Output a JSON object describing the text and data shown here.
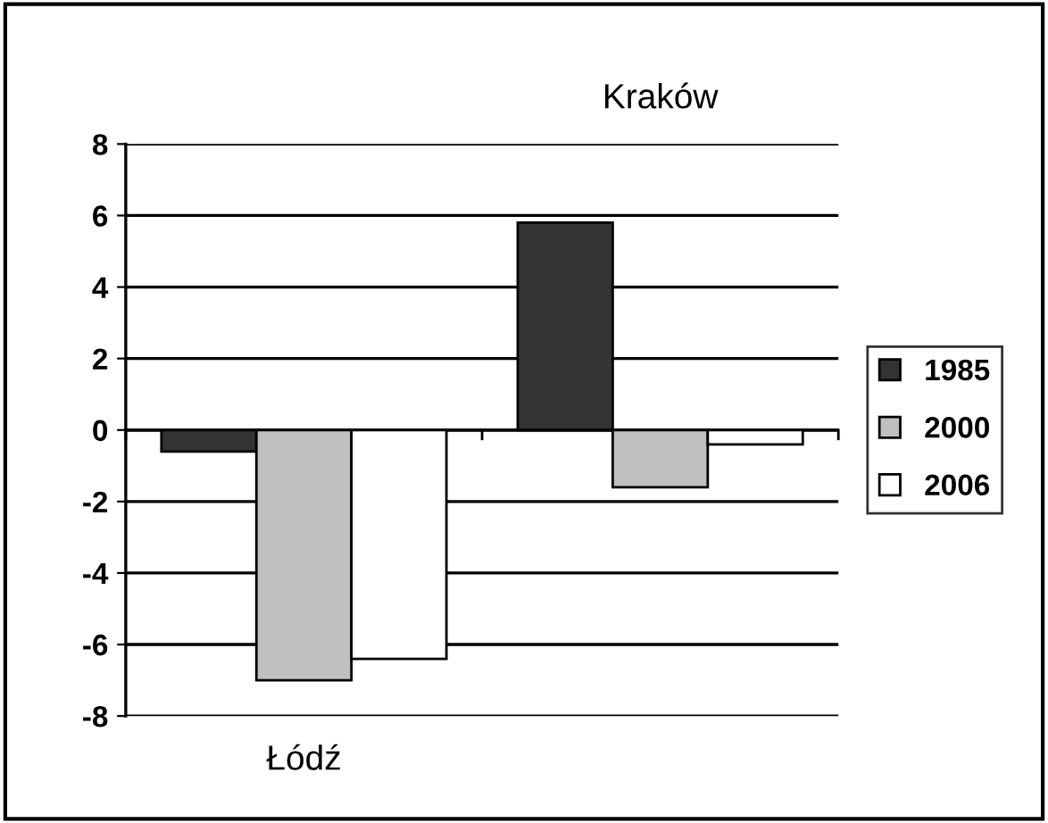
{
  "chart_data": {
    "type": "bar",
    "categories": [
      "Łódź",
      "Kraków"
    ],
    "series": [
      {
        "name": "1985",
        "color": "#333333",
        "values": [
          -0.6,
          5.8
        ]
      },
      {
        "name": "2000",
        "color": "#c0c0c0",
        "values": [
          -7.0,
          -1.6
        ]
      },
      {
        "name": "2006",
        "color": "#ffffff",
        "values": [
          -6.4,
          -0.4
        ]
      }
    ],
    "ylim": [
      -8,
      8
    ],
    "yticks": [
      -8,
      -6,
      -4,
      -2,
      0,
      2,
      4,
      6,
      8
    ],
    "grid": "y",
    "legend": "right"
  }
}
